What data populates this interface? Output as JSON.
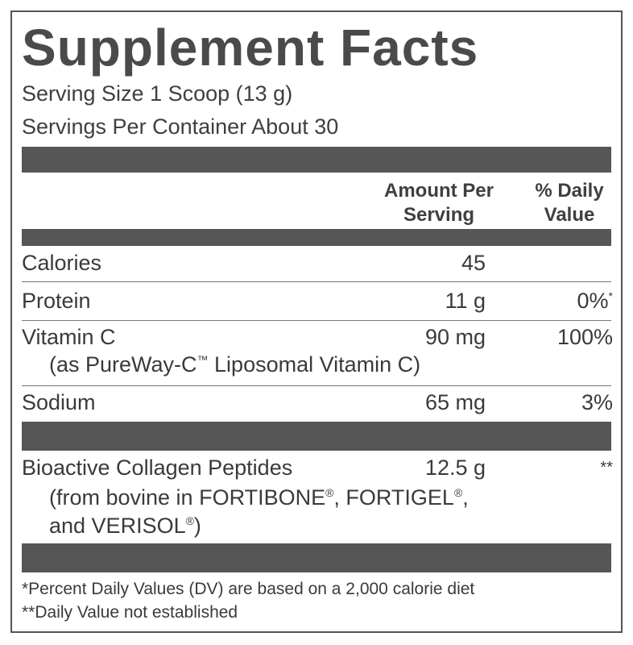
{
  "title": "Supplement Facts",
  "serving_size": "Serving Size 1 Scoop (13 g)",
  "servings_per_container": "Servings Per Container About 30",
  "header": {
    "amount_line1": "Amount Per",
    "amount_line2": "Serving",
    "dv_line1": "% Daily",
    "dv_line2": "Value"
  },
  "rows": [
    {
      "name": "Calories",
      "amount": "45",
      "dv": ""
    },
    {
      "name": "Protein",
      "amount": "11 g",
      "dv": "0%",
      "dv_mark": "*"
    },
    {
      "name": "Vitamin C",
      "amount": "90 mg",
      "dv": "100%",
      "sub_prefix": "(as PureWay-C",
      "sub_mark": "™",
      "sub_suffix": " Liposomal Vitamin C)"
    },
    {
      "name": "Sodium",
      "amount": "65 mg",
      "dv": "3%"
    }
  ],
  "collagen": {
    "name": "Bioactive Collagen Peptides",
    "amount": "12.5 g",
    "dv": "**",
    "line2_a": "(from bovine in FORTIBONE",
    "line2_reg1": "®",
    "line2_b": ", FORTIGEL",
    "line2_reg2": "®",
    "line2_c": ",",
    "line3_a": "and VERISOL",
    "line3_reg": "®",
    "line3_b": ")"
  },
  "footnotes": {
    "f1": "*Percent Daily Values (DV) are based on a 2,000 calorie diet",
    "f2": "**Daily Value not established"
  },
  "colors": {
    "bar": "#565656",
    "text": "#3a3a3a",
    "border": "#555555"
  }
}
